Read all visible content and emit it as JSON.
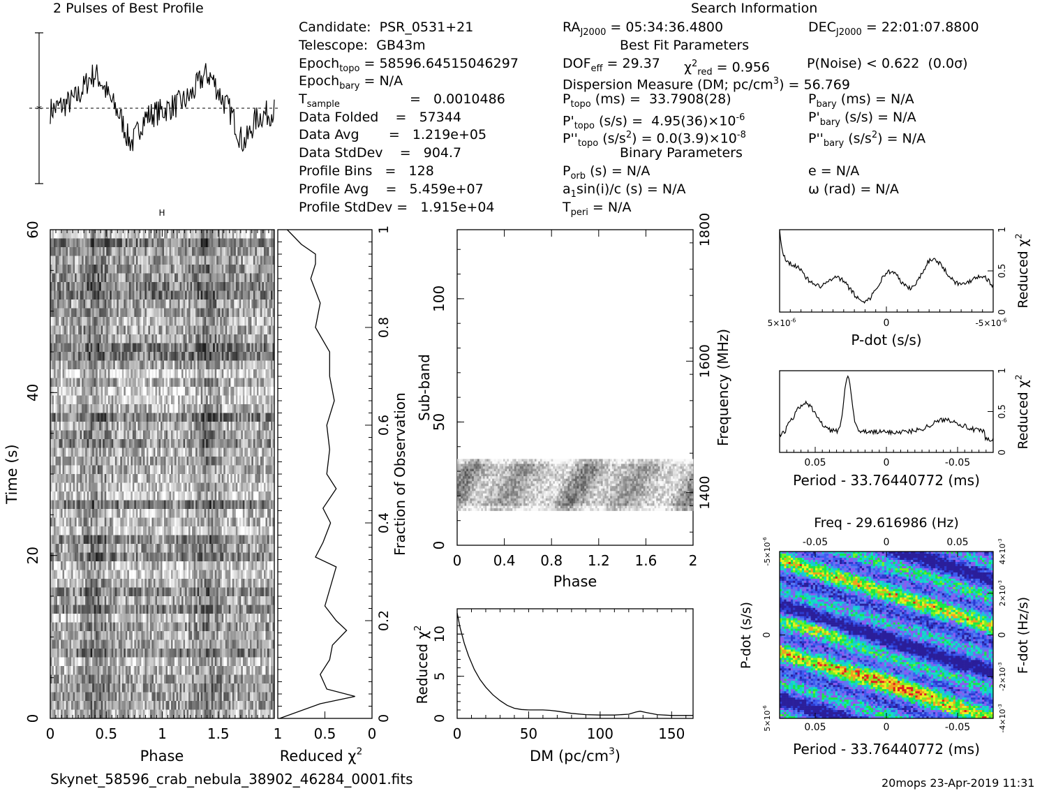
{
  "header": {
    "profile_title": "2 Pulses of Best Profile",
    "search_title": "Search Information"
  },
  "candidate_info": {
    "candidate": "Candidate:  PSR_0531+21",
    "telescope": "Telescope:  GB43m",
    "epoch_topo": "Epoch",
    "epoch_topo_sub": "topo",
    "epoch_topo_val": "= 58596.64515046297",
    "epoch_bary": "Epoch",
    "epoch_bary_sub": "bary",
    "epoch_bary_val": "= N/A",
    "t_sample": "T",
    "t_sample_sub": "sample",
    "t_sample_val": "=   0.0010486",
    "data_folded": "Data Folded    =   57344",
    "data_avg": "Data Avg       =   1.219e+05",
    "data_stddev": "Data StdDev    =   904.7",
    "profile_bins": "Profile Bins   =   128",
    "profile_avg": "Profile Avg    =   5.459e+07",
    "profile_stddev": "Profile StdDev =   1.915e+04"
  },
  "search_info": {
    "ra": "RA",
    "ra_sub": "J2000",
    "ra_val": "= 05:34:36.4800",
    "dec": "DEC",
    "dec_sub": "J2000",
    "dec_val": "= 22:01:07.8800",
    "best_fit_title": "Best Fit Parameters",
    "dof": "DOF",
    "dof_sub": "eff",
    "dof_val": "= 29.37",
    "chi": "χ",
    "chi_sup": "2",
    "chi_sub": "red",
    "chi_val": "= 0.956",
    "pnoise": "P(Noise) < 0.622  (0.0σ)",
    "dm_line": "Dispersion Measure (DM; pc/cm",
    "dm_sup": "3",
    "dm_val": ") = 56.769",
    "ptopo": "P",
    "ptopo_sub": "topo",
    "ptopo_val": "(ms) =  33.7908(28)",
    "pbary": "P",
    "pbary_sub": "bary",
    "pbary_val": "(ms) = N/A",
    "pdot_topo": "P'",
    "pdot_topo_sub": "topo",
    "pdot_topo_val": "(s/s) =  4.95(36)×10",
    "pdot_topo_sup": "-6",
    "pdot_bary": "P'",
    "pdot_bary_sub": "bary",
    "pdot_bary_val": "(s/s) = N/A",
    "pddot_topo": "P''",
    "pddot_topo_sub": "topo",
    "pddot_topo_val": "(s/s",
    "pddot_topo_sup": "2",
    "pddot_topo_val2": ") = 0.0(3.9)×10",
    "pddot_topo_sup2": "-8",
    "pddot_bary": "P''",
    "pddot_bary_sub": "bary",
    "pddot_bary_val": "(s/s",
    "pddot_bary_sup": "2",
    "pddot_bary_val2": ") = N/A",
    "binary_title": "Binary Parameters",
    "porb": "P",
    "porb_sub": "orb",
    "porb_val": "(s) = N/A",
    "ecc": "e = N/A",
    "a1": "a",
    "a1_sub": "1",
    "a1_val": "sin(i)/c (s) = N/A",
    "omega": "ω (rad) = N/A",
    "tperi": "T",
    "tperi_sub": "peri",
    "tperi_val": "= N/A"
  },
  "footer": {
    "filename": "Skynet_58596_crab_nebula_38902_46284_0001.fits",
    "stamp": "20mops 23-Apr-2019 11:31"
  },
  "chart_data": [
    {
      "type": "line",
      "title": "2 Pulses of Best Profile",
      "x_range": [
        0,
        2
      ],
      "note_labels": []
    },
    {
      "type": "heatmap",
      "xlabel": "Phase",
      "ylabel": "Time (s)",
      "xlim": [
        0,
        2
      ],
      "ylim": [
        0,
        60
      ],
      "x_ticks": [
        0,
        0.5,
        1,
        1.5
      ],
      "x_tick_labels": [
        "0",
        "0.5",
        "1",
        "1.5"
      ],
      "y_ticks": [
        0,
        20,
        40,
        60
      ],
      "y_tick_labels": [
        "0",
        "20",
        "40",
        "60"
      ],
      "colormap": "grayscale"
    },
    {
      "type": "line",
      "xlabel": "Reduced χ",
      "xlabel_sup": "2",
      "ylabel": "Fraction of Observation",
      "xlim": [
        1,
        0
      ],
      "x_tick_labels": [
        "1",
        "0.5",
        "0"
      ],
      "y_tick_labels": [
        "0",
        "0.2",
        "0.4",
        "0.6",
        "0.8",
        "1"
      ],
      "frac": [
        0.0,
        0.03,
        0.045,
        0.06,
        0.09,
        0.12,
        0.15,
        0.18,
        0.2,
        0.23,
        0.27,
        0.31,
        0.33,
        0.36,
        0.4,
        0.43,
        0.47,
        0.5,
        0.55,
        0.6,
        0.65,
        0.7,
        0.75,
        0.8,
        0.85,
        0.9,
        0.93,
        0.95,
        0.97,
        1.0
      ],
      "chi2": [
        0.98,
        0.55,
        0.18,
        0.48,
        0.55,
        0.45,
        0.42,
        0.27,
        0.38,
        0.5,
        0.44,
        0.38,
        0.6,
        0.52,
        0.44,
        0.52,
        0.38,
        0.48,
        0.45,
        0.48,
        0.4,
        0.45,
        0.45,
        0.6,
        0.55,
        0.65,
        0.6,
        0.6,
        0.75,
        0.9
      ]
    },
    {
      "type": "heatmap",
      "xlabel": "Phase",
      "ylabel": "Sub-band",
      "y2label": "Frequency (MHz)",
      "xlim": [
        0,
        2
      ],
      "ylim": [
        0,
        128
      ],
      "x_tick_labels": [
        "0",
        "0.4",
        "0.8",
        "1.2",
        "1.6",
        "2"
      ],
      "y_tick_labels": [
        "0",
        "50",
        "100"
      ],
      "y2_tick_labels": [
        "1400",
        "1600",
        "1800"
      ],
      "data_band": [
        14,
        35
      ]
    },
    {
      "type": "line",
      "xlabel": "DM (pc/cm",
      "xlabel_sup": "3",
      "xlabel_end": ")",
      "ylabel": "Reduced χ",
      "ylabel_sup": "2",
      "xlim": [
        0,
        165
      ],
      "ylim": [
        0,
        13
      ],
      "x_tick_labels": [
        "0",
        "50",
        "100",
        "150"
      ],
      "y_tick_labels": [
        "0",
        "5",
        "10"
      ],
      "x": [
        0,
        2,
        5,
        8,
        12,
        16,
        20,
        25,
        30,
        35,
        40,
        45,
        50,
        55,
        60,
        65,
        70,
        80,
        90,
        100,
        110,
        120,
        125,
        128,
        132,
        140,
        150,
        160,
        165
      ],
      "y": [
        12.5,
        10.8,
        8.9,
        7.4,
        5.8,
        4.6,
        3.7,
        2.8,
        2.1,
        1.55,
        1.2,
        1.05,
        1.0,
        1.0,
        1.0,
        0.95,
        0.85,
        0.6,
        0.45,
        0.4,
        0.4,
        0.5,
        0.75,
        0.85,
        0.7,
        0.45,
        0.35,
        0.35,
        0.35
      ]
    },
    {
      "type": "line",
      "xlabel": "P-dot (s/s)",
      "ylabel": "Reduced χ",
      "ylabel_sup": "2",
      "x_tick_labels": [
        "5×10",
        "0",
        "-5×10"
      ],
      "x_tick_sup": "-6",
      "y_tick_labels": [
        "0",
        "0.5",
        "1"
      ],
      "xlim": [
        5e-06,
        -5e-06
      ],
      "ylim": [
        0,
        1
      ]
    },
    {
      "type": "line",
      "xlabel": "Period - 33.76440772 (ms)",
      "ylabel": "Reduced χ",
      "ylabel_sup": "2",
      "x_tick_labels": [
        "0.05",
        "0",
        "-0.05"
      ],
      "y_tick_labels": [
        "0",
        "0.5",
        "1"
      ],
      "xlim": [
        0.075,
        -0.075
      ],
      "ylim": [
        0,
        1
      ]
    },
    {
      "type": "heatmap",
      "title": "Freq - 29.616986 (Hz)",
      "xlabel": "Period - 33.76440772 (ms)",
      "ylabel": "P-dot (s/s)",
      "y2label": "F-dot (Hz/s)",
      "x_tick_labels": [
        "0.05",
        "0",
        "-0.05"
      ],
      "top_tick_labels": [
        "-0.05",
        "0",
        "0.05"
      ],
      "y_tick_labels": [
        "5×10",
        "0",
        "-5×10"
      ],
      "y_tick_sup": "-6",
      "y2_tick_labels": [
        "-4×10",
        "-2×10",
        "0",
        "2×10",
        "4×10"
      ],
      "y2_tick_sup": "-3",
      "colormap": "rainbow"
    }
  ]
}
